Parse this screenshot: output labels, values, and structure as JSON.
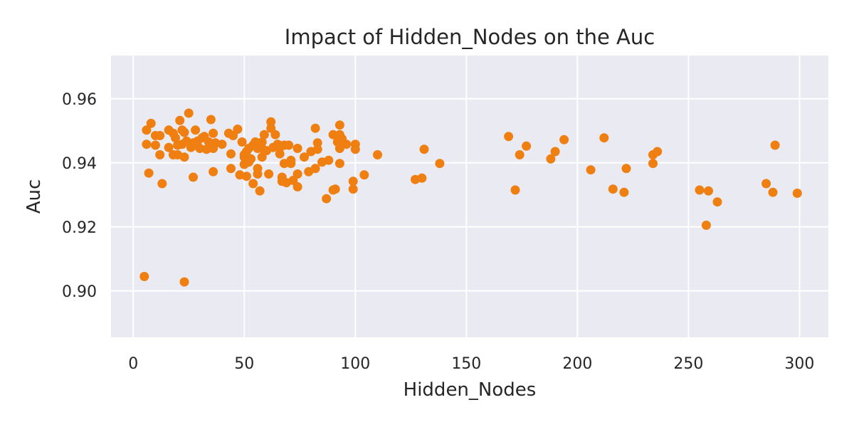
{
  "chart_data": {
    "type": "scatter",
    "title": "Impact of Hidden_Nodes on the Auc",
    "xlabel": "Hidden_Nodes",
    "ylabel": "Auc",
    "xlim": [
      -10,
      313
    ],
    "ylim": [
      0.8855,
      0.9735
    ],
    "xticks": [
      "0",
      "50",
      "100",
      "150",
      "200",
      "250",
      "300"
    ],
    "xtick_values": [
      0,
      50,
      100,
      150,
      200,
      250,
      300
    ],
    "yticks": [
      "0.90",
      "0.92",
      "0.94",
      "0.96"
    ],
    "ytick_values": [
      0.9,
      0.92,
      0.94,
      0.96
    ],
    "grid": true,
    "legend": "none",
    "colors": {
      "points": "#ee7f10",
      "background": "#eaeaf2",
      "grid": "#ffffff"
    },
    "points": [
      {
        "x": 5,
        "y": 0.9045
      },
      {
        "x": 23,
        "y": 0.9028
      },
      {
        "x": 6,
        "y": 0.9502
      },
      {
        "x": 6,
        "y": 0.9458
      },
      {
        "x": 7,
        "y": 0.9368
      },
      {
        "x": 8,
        "y": 0.9523
      },
      {
        "x": 10,
        "y": 0.9485
      },
      {
        "x": 10,
        "y": 0.9455
      },
      {
        "x": 12,
        "y": 0.9485
      },
      {
        "x": 12,
        "y": 0.9425
      },
      {
        "x": 13,
        "y": 0.9335
      },
      {
        "x": 16,
        "y": 0.9502
      },
      {
        "x": 16,
        "y": 0.9448
      },
      {
        "x": 18,
        "y": 0.9492
      },
      {
        "x": 18,
        "y": 0.9425
      },
      {
        "x": 19,
        "y": 0.9478
      },
      {
        "x": 20,
        "y": 0.9425
      },
      {
        "x": 20,
        "y": 0.9455
      },
      {
        "x": 21,
        "y": 0.9532
      },
      {
        "x": 22,
        "y": 0.9502
      },
      {
        "x": 22,
        "y": 0.9458
      },
      {
        "x": 23,
        "y": 0.9495
      },
      {
        "x": 23,
        "y": 0.9418
      },
      {
        "x": 24,
        "y": 0.9468
      },
      {
        "x": 25,
        "y": 0.9555
      },
      {
        "x": 26,
        "y": 0.9448
      },
      {
        "x": 27,
        "y": 0.9462
      },
      {
        "x": 27,
        "y": 0.9355
      },
      {
        "x": 28,
        "y": 0.9502
      },
      {
        "x": 28,
        "y": 0.9455
      },
      {
        "x": 29,
        "y": 0.9468
      },
      {
        "x": 30,
        "y": 0.9445
      },
      {
        "x": 31,
        "y": 0.9478
      },
      {
        "x": 32,
        "y": 0.9482
      },
      {
        "x": 33,
        "y": 0.9442
      },
      {
        "x": 34,
        "y": 0.9465
      },
      {
        "x": 35,
        "y": 0.9535
      },
      {
        "x": 36,
        "y": 0.9492
      },
      {
        "x": 36,
        "y": 0.9445
      },
      {
        "x": 36,
        "y": 0.9372
      },
      {
        "x": 37,
        "y": 0.9462
      },
      {
        "x": 40,
        "y": 0.9458
      },
      {
        "x": 43,
        "y": 0.9492
      },
      {
        "x": 44,
        "y": 0.9428
      },
      {
        "x": 44,
        "y": 0.9382
      },
      {
        "x": 45,
        "y": 0.9485
      },
      {
        "x": 47,
        "y": 0.9505
      },
      {
        "x": 48,
        "y": 0.9362
      },
      {
        "x": 49,
        "y": 0.9465
      },
      {
        "x": 50,
        "y": 0.9425
      },
      {
        "x": 50,
        "y": 0.9418
      },
      {
        "x": 50,
        "y": 0.9395
      },
      {
        "x": 51,
        "y": 0.9435
      },
      {
        "x": 51,
        "y": 0.9358
      },
      {
        "x": 52,
        "y": 0.9445
      },
      {
        "x": 52,
        "y": 0.9402
      },
      {
        "x": 53,
        "y": 0.9412
      },
      {
        "x": 54,
        "y": 0.9455
      },
      {
        "x": 54,
        "y": 0.9335
      },
      {
        "x": 55,
        "y": 0.9465
      },
      {
        "x": 56,
        "y": 0.9445
      },
      {
        "x": 56,
        "y": 0.9382
      },
      {
        "x": 56,
        "y": 0.9365
      },
      {
        "x": 57,
        "y": 0.9312
      },
      {
        "x": 58,
        "y": 0.9465
      },
      {
        "x": 58,
        "y": 0.9445
      },
      {
        "x": 58,
        "y": 0.9418
      },
      {
        "x": 59,
        "y": 0.9488
      },
      {
        "x": 60,
        "y": 0.9438
      },
      {
        "x": 61,
        "y": 0.9365
      },
      {
        "x": 62,
        "y": 0.9528
      },
      {
        "x": 62,
        "y": 0.9508
      },
      {
        "x": 63,
        "y": 0.9448
      },
      {
        "x": 64,
        "y": 0.9488
      },
      {
        "x": 65,
        "y": 0.9458
      },
      {
        "x": 66,
        "y": 0.9448
      },
      {
        "x": 66,
        "y": 0.9428
      },
      {
        "x": 67,
        "y": 0.9355
      },
      {
        "x": 67,
        "y": 0.9342
      },
      {
        "x": 68,
        "y": 0.9455
      },
      {
        "x": 68,
        "y": 0.9398
      },
      {
        "x": 69,
        "y": 0.9338
      },
      {
        "x": 70,
        "y": 0.9455
      },
      {
        "x": 71,
        "y": 0.9408
      },
      {
        "x": 71,
        "y": 0.9398
      },
      {
        "x": 72,
        "y": 0.9345
      },
      {
        "x": 74,
        "y": 0.9445
      },
      {
        "x": 74,
        "y": 0.9365
      },
      {
        "x": 74,
        "y": 0.9325
      },
      {
        "x": 77,
        "y": 0.9418
      },
      {
        "x": 79,
        "y": 0.9372
      },
      {
        "x": 80,
        "y": 0.9435
      },
      {
        "x": 82,
        "y": 0.9508
      },
      {
        "x": 82,
        "y": 0.9382
      },
      {
        "x": 83,
        "y": 0.9462
      },
      {
        "x": 83,
        "y": 0.9442
      },
      {
        "x": 85,
        "y": 0.9402
      },
      {
        "x": 87,
        "y": 0.9288
      },
      {
        "x": 88,
        "y": 0.9408
      },
      {
        "x": 90,
        "y": 0.9488
      },
      {
        "x": 90,
        "y": 0.9315
      },
      {
        "x": 91,
        "y": 0.9318
      },
      {
        "x": 92,
        "y": 0.9465
      },
      {
        "x": 93,
        "y": 0.9518
      },
      {
        "x": 93,
        "y": 0.9488
      },
      {
        "x": 93,
        "y": 0.9445
      },
      {
        "x": 93,
        "y": 0.9398
      },
      {
        "x": 94,
        "y": 0.9475
      },
      {
        "x": 96,
        "y": 0.9458
      },
      {
        "x": 99,
        "y": 0.9342
      },
      {
        "x": 99,
        "y": 0.9318
      },
      {
        "x": 100,
        "y": 0.9458
      },
      {
        "x": 100,
        "y": 0.9442
      },
      {
        "x": 104,
        "y": 0.9362
      },
      {
        "x": 110,
        "y": 0.9425
      },
      {
        "x": 127,
        "y": 0.9348
      },
      {
        "x": 130,
        "y": 0.9352
      },
      {
        "x": 131,
        "y": 0.9442
      },
      {
        "x": 138,
        "y": 0.9398
      },
      {
        "x": 169,
        "y": 0.9482
      },
      {
        "x": 172,
        "y": 0.9315
      },
      {
        "x": 174,
        "y": 0.9425
      },
      {
        "x": 177,
        "y": 0.9452
      },
      {
        "x": 188,
        "y": 0.9412
      },
      {
        "x": 190,
        "y": 0.9435
      },
      {
        "x": 194,
        "y": 0.9472
      },
      {
        "x": 206,
        "y": 0.9378
      },
      {
        "x": 212,
        "y": 0.9478
      },
      {
        "x": 216,
        "y": 0.9318
      },
      {
        "x": 221,
        "y": 0.9308
      },
      {
        "x": 222,
        "y": 0.9382
      },
      {
        "x": 234,
        "y": 0.9425
      },
      {
        "x": 234,
        "y": 0.9398
      },
      {
        "x": 236,
        "y": 0.9435
      },
      {
        "x": 255,
        "y": 0.9315
      },
      {
        "x": 258,
        "y": 0.9205
      },
      {
        "x": 259,
        "y": 0.9312
      },
      {
        "x": 263,
        "y": 0.9278
      },
      {
        "x": 285,
        "y": 0.9335
      },
      {
        "x": 288,
        "y": 0.9308
      },
      {
        "x": 289,
        "y": 0.9455
      },
      {
        "x": 299,
        "y": 0.9305
      }
    ]
  }
}
